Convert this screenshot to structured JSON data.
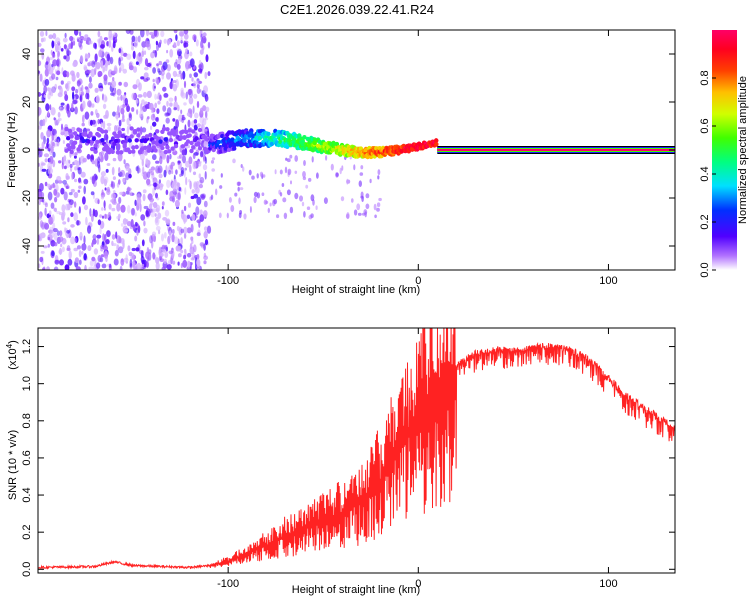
{
  "page_title": "C2E1.2026.039.22.41.R24",
  "chart_data": [
    {
      "type": "heatmap",
      "title": "C2E1.2026.039.22.41.R24",
      "xlabel": "Height of straight line (km)",
      "ylabel": "Frequency (Hz)",
      "xlim": [
        -200,
        135
      ],
      "ylim": [
        -50,
        50
      ],
      "x_ticks": [
        -100,
        0,
        100
      ],
      "x_tick_labels": [
        "-100",
        "0",
        "100"
      ],
      "y_ticks": [
        -40,
        -20,
        0,
        20,
        40
      ],
      "y_tick_labels": [
        "-40",
        "-20",
        "0",
        "20",
        "40"
      ],
      "colorbar": {
        "label": "Normalized spectral amplitude",
        "range": [
          0,
          1
        ],
        "ticks": [
          0,
          0.2,
          0.4,
          0.6,
          0.8
        ],
        "tick_labels": [
          "0.0",
          "0.2",
          "0.4",
          "0.6",
          "0.8"
        ],
        "colormap": [
          "#ffffff",
          "#7b00ff",
          "#0000ff",
          "#00ffff",
          "#00ff00",
          "#ffff00",
          "#ff8000",
          "#ff0000",
          "#ff0066"
        ]
      },
      "features": {
        "noise_region_x": [
          -200,
          -110
        ],
        "signal_centerline_hz": 0,
        "steady_tone_x_start": 10,
        "scatter_tail_end_x": -20
      }
    },
    {
      "type": "line",
      "xlabel": "Height of straight line (km)",
      "ylabel": "SNR (10 * v/v)",
      "y_scale_label": "(x10",
      "y_scale_exp": "4",
      "y_scale_close": ")",
      "xlim": [
        -200,
        135
      ],
      "ylim": [
        -0.02,
        1.3
      ],
      "x_ticks": [
        -100,
        0,
        100
      ],
      "x_tick_labels": [
        "-100",
        "0",
        "100"
      ],
      "y_ticks": [
        0,
        0.2,
        0.4,
        0.6,
        0.8,
        1.0,
        1.2
      ],
      "y_tick_labels": [
        "0.0",
        "0.2",
        "0.4",
        "0.6",
        "0.8",
        "1.0",
        "1.2"
      ],
      "series": [
        {
          "name": "SNR",
          "color": "#ff2222",
          "x": [
            -200,
            -170,
            -160,
            -150,
            -120,
            -110,
            -100,
            -90,
            -80,
            -70,
            -60,
            -50,
            -40,
            -30,
            -20,
            -15,
            -10,
            -5,
            0,
            10,
            20,
            30,
            40,
            50,
            60,
            70,
            80,
            90,
            100,
            110,
            120,
            135
          ],
          "values": [
            0.01,
            0.015,
            0.04,
            0.02,
            0.01,
            0.02,
            0.05,
            0.1,
            0.15,
            0.2,
            0.25,
            0.3,
            0.35,
            0.42,
            0.55,
            0.65,
            0.75,
            0.85,
            0.95,
            1.05,
            1.12,
            1.18,
            1.2,
            1.2,
            1.22,
            1.22,
            1.2,
            1.15,
            1.05,
            0.95,
            0.88,
            0.78
          ]
        }
      ]
    }
  ]
}
